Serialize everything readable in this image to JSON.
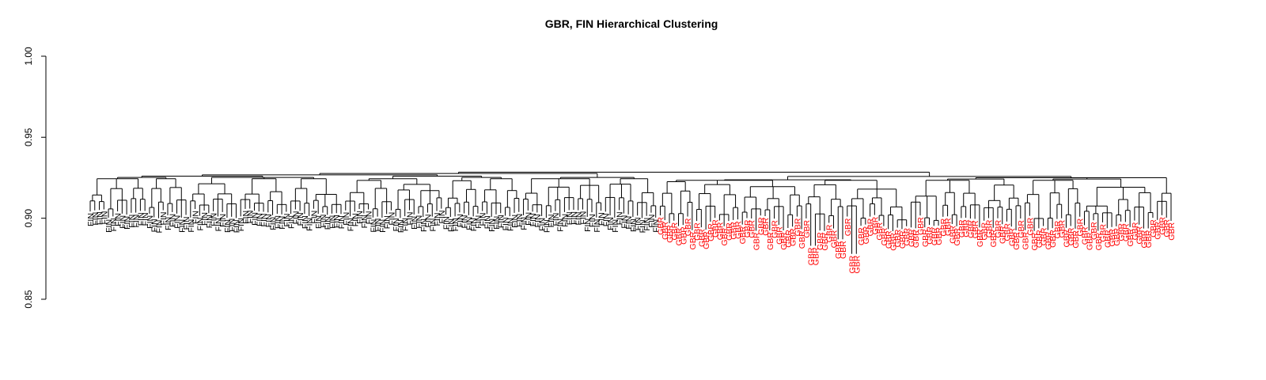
{
  "chart_data": {
    "type": "dendrogram",
    "title": "GBR, FIN Hierarchical Clustering",
    "xlabel": "",
    "ylabel": "",
    "ylim": [
      0.85,
      1.0
    ],
    "yticks": [
      0.85,
      0.9,
      0.95,
      1.0
    ],
    "ytick_labels": [
      "0.85",
      "0.90",
      "0.95",
      "1.00"
    ],
    "grid": false,
    "colors": {
      "FIN": "#000000",
      "GBR": "#ff0000",
      "branch": "#000000"
    },
    "groups": [
      {
        "label": "FIN",
        "count": 125,
        "color": "#000000"
      },
      {
        "label": "GBR",
        "count": 113,
        "color": "#ff0000"
      }
    ],
    "root_height": 0.926,
    "group_merge_heights": {
      "FIN": 0.925,
      "GBR": 0.924
    },
    "outliers": [
      {
        "label": "GBR",
        "leaves": 2,
        "merge_height": 0.919,
        "leaf_height": 0.883
      },
      {
        "label": "GBR",
        "leaves": 2,
        "merge_height": 0.917,
        "leaf_height": 0.887
      },
      {
        "label": "GBR",
        "leaves": 2,
        "merge_height": 0.913,
        "leaf_height": 0.878
      }
    ]
  }
}
